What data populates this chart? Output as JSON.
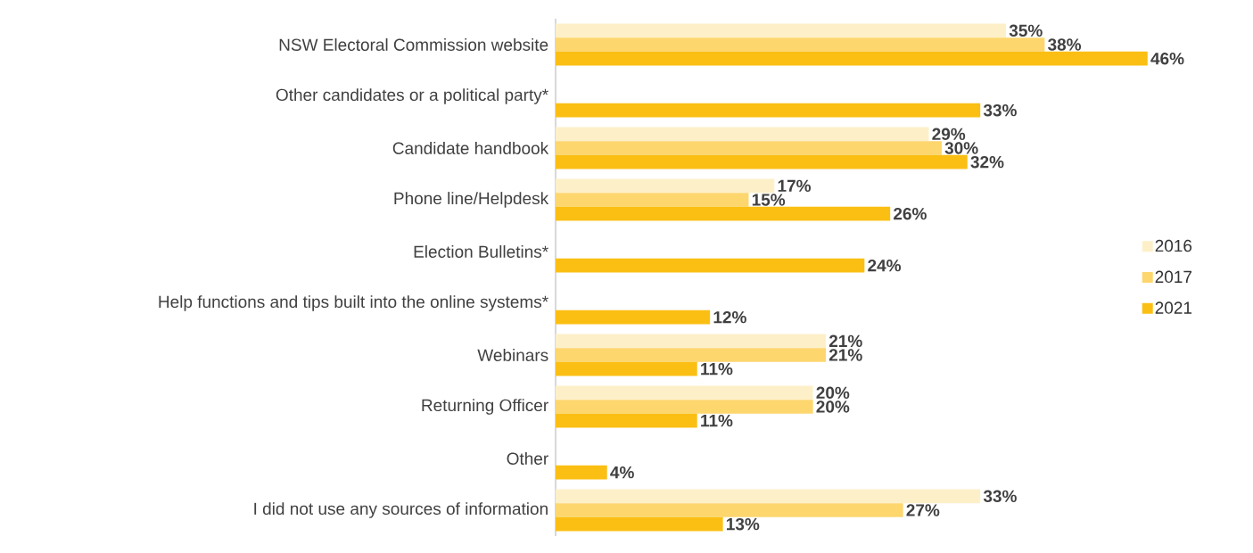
{
  "chart_data": {
    "type": "bar",
    "orientation": "horizontal",
    "legend": "right",
    "tick_labels": "y",
    "categories": [
      "NSW Electoral Commission website",
      "Other candidates or a political party*",
      "Candidate handbook",
      "Phone line/Helpdesk",
      "Election Bulletins*",
      "Help functions and tips built into the online systems*",
      "Webinars",
      "Returning Officer",
      "Other",
      "I did not use any sources of information"
    ],
    "series": [
      {
        "name": "2016",
        "color": "#fdf0c9",
        "values": [
          35,
          null,
          29,
          17,
          null,
          null,
          21,
          20,
          null,
          33
        ],
        "value_labels": [
          "35%",
          null,
          "29%",
          "17%",
          null,
          null,
          "21%",
          "20%",
          null,
          "33%"
        ]
      },
      {
        "name": "2017",
        "color": "#fdd66e",
        "values": [
          38,
          null,
          30,
          15,
          null,
          null,
          21,
          20,
          null,
          27
        ],
        "value_labels": [
          "38%",
          null,
          "30%",
          "15%",
          null,
          null,
          "21%",
          "20%",
          null,
          "27%"
        ]
      },
      {
        "name": "2021",
        "color": "#fbbf14",
        "values": [
          46,
          33,
          32,
          26,
          24,
          12,
          11,
          11,
          4,
          13
        ],
        "value_labels": [
          "46%",
          "33%",
          "32%",
          "26%",
          "24%",
          "12%",
          "11%",
          "11%",
          "4%",
          "13%"
        ]
      }
    ]
  }
}
